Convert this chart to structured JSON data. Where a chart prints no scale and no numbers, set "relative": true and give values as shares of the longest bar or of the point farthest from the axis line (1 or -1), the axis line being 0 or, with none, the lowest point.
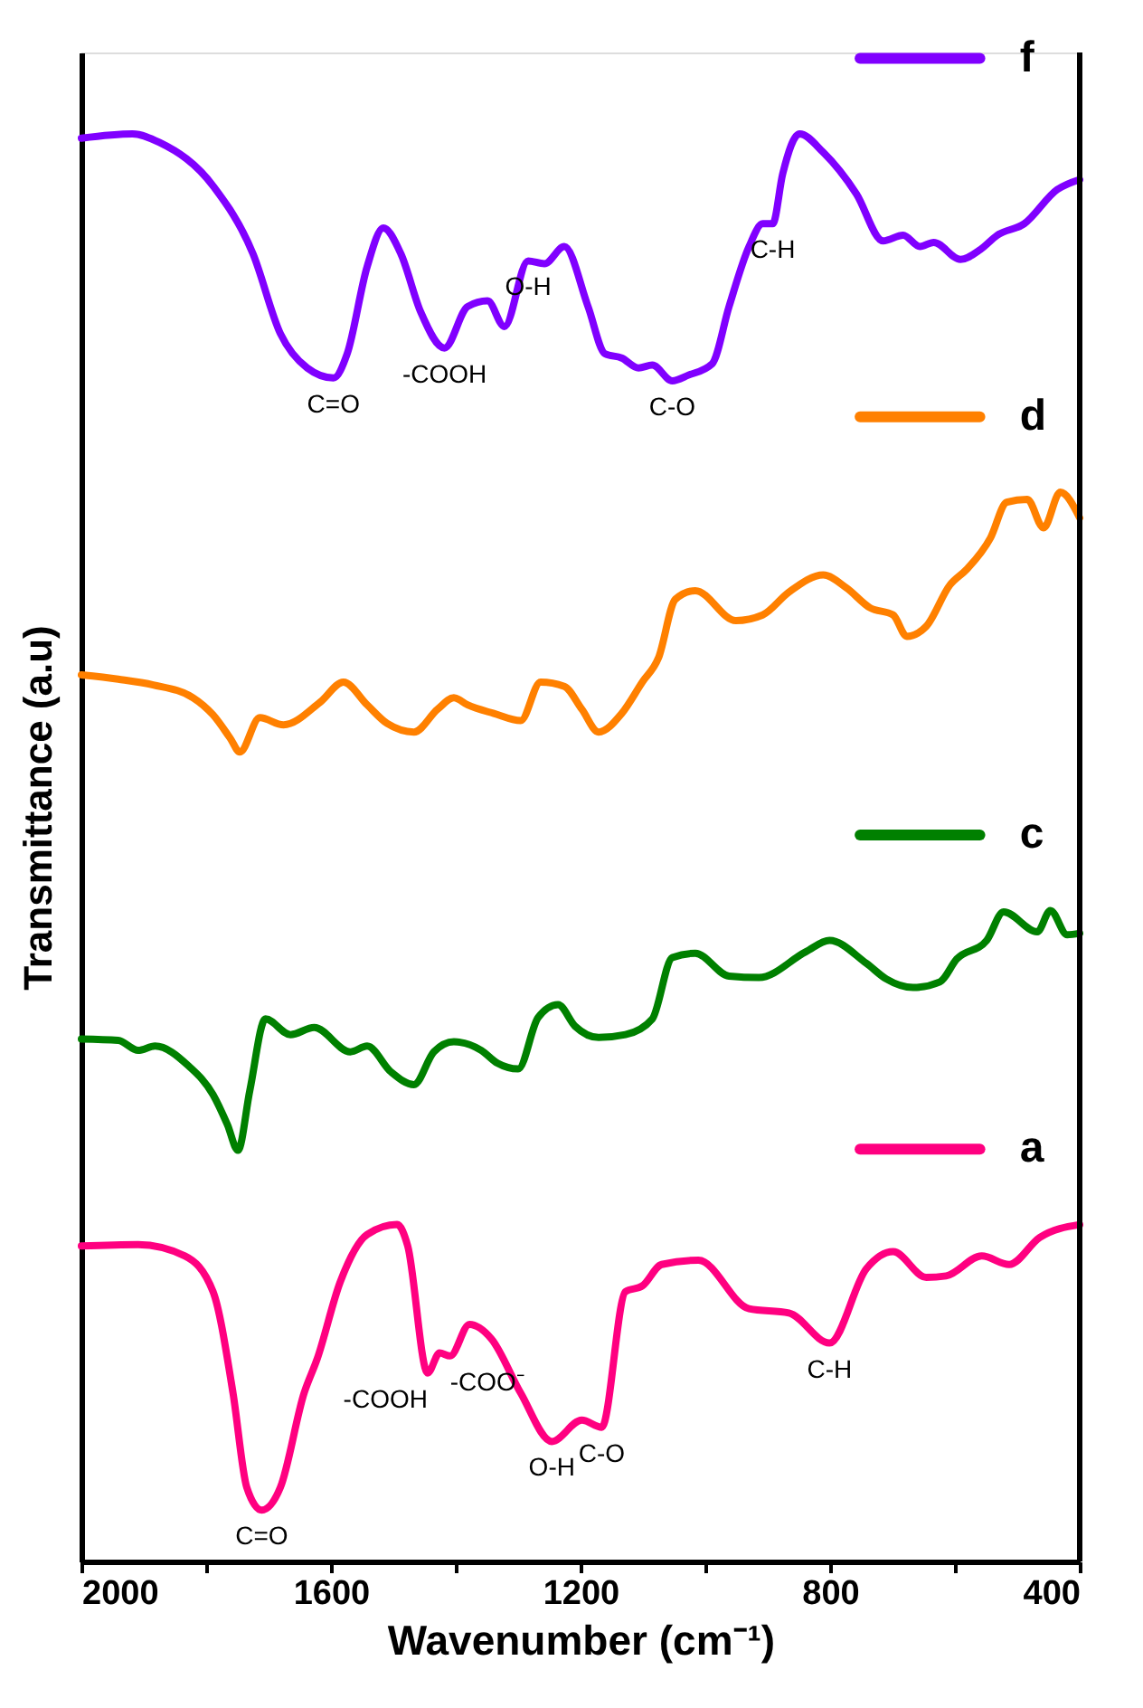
{
  "chart_data": {
    "type": "line",
    "relative": true,
    "xlabel": "Wavenumber (cm⁻¹)",
    "ylabel": "Transmittance (a.u)",
    "xlim": [
      2000,
      400
    ],
    "xticks": [
      2000,
      {
        "value": 1800,
        "label": null
      },
      1600,
      {
        "value": 1400,
        "label": null
      },
      1200,
      {
        "value": 1000,
        "label": null
      },
      800,
      {
        "value": 600,
        "label": null
      },
      400
    ],
    "legend": "right",
    "grid": false,
    "line_style": "solid",
    "series": [
      {
        "name": "f",
        "color": "#8000ff",
        "x": [
          2000,
          1918,
          1875,
          1788,
          1725,
          1681,
          1638,
          1596,
          1574,
          1542,
          1516,
          1488,
          1456,
          1418,
          1381,
          1349,
          1322,
          1284,
          1258,
          1226,
          1188,
          1161,
          1134,
          1107,
          1085,
          1053,
          1027,
          989,
          962,
          930,
          908,
          892,
          876,
          849,
          811,
          758,
          715,
          683,
          656,
          634,
          591,
          559,
          532,
          489,
          436,
          400
        ],
        "values": [
          0.997,
          1.0,
          0.994,
          0.963,
          0.916,
          0.86,
          0.836,
          0.829,
          0.846,
          0.907,
          0.934,
          0.916,
          0.875,
          0.85,
          0.879,
          0.883,
          0.865,
          0.911,
          0.909,
          0.921,
          0.879,
          0.846,
          0.843,
          0.836,
          0.838,
          0.827,
          0.831,
          0.839,
          0.879,
          0.921,
          0.937,
          0.937,
          0.972,
          1.0,
          0.987,
          0.958,
          0.925,
          0.929,
          0.921,
          0.924,
          0.912,
          0.919,
          0.929,
          0.937,
          0.961,
          0.968
        ]
      },
      {
        "name": "d",
        "color": "#ff8000",
        "x": [
          2000,
          1941,
          1885,
          1821,
          1789,
          1762,
          1746,
          1714,
          1676,
          1617,
          1580,
          1542,
          1510,
          1467,
          1429,
          1403,
          1381,
          1339,
          1296,
          1264,
          1226,
          1198,
          1171,
          1134,
          1101,
          1075,
          1048,
          1016,
          951,
          908,
          866,
          811,
          774,
          736,
          699,
          677,
          646,
          608,
          581,
          543,
          517,
          484,
          458,
          431,
          400
        ],
        "values": [
          0.621,
          0.618,
          0.614,
          0.605,
          0.593,
          0.577,
          0.567,
          0.591,
          0.586,
          0.602,
          0.616,
          0.6,
          0.587,
          0.581,
          0.597,
          0.605,
          0.6,
          0.594,
          0.589,
          0.616,
          0.613,
          0.597,
          0.581,
          0.594,
          0.616,
          0.633,
          0.674,
          0.68,
          0.659,
          0.663,
          0.679,
          0.691,
          0.682,
          0.668,
          0.663,
          0.648,
          0.655,
          0.684,
          0.695,
          0.717,
          0.742,
          0.744,
          0.724,
          0.749,
          0.731
        ]
      },
      {
        "name": "c",
        "color": "#008000",
        "x": [
          2000,
          1941,
          1909,
          1882,
          1828,
          1789,
          1766,
          1749,
          1730,
          1705,
          1665,
          1627,
          1569,
          1542,
          1504,
          1467,
          1435,
          1403,
          1359,
          1333,
          1300,
          1268,
          1236,
          1209,
          1171,
          1128,
          1085,
          1053,
          1016,
          962,
          914,
          839,
          801,
          742,
          710,
          667,
          624,
          597,
          549,
          522,
          468,
          447,
          420,
          400
        ],
        "values": [
          0.366,
          0.365,
          0.358,
          0.361,
          0.347,
          0.327,
          0.306,
          0.288,
          0.33,
          0.38,
          0.369,
          0.374,
          0.357,
          0.361,
          0.343,
          0.334,
          0.357,
          0.364,
          0.358,
          0.349,
          0.345,
          0.381,
          0.39,
          0.375,
          0.367,
          0.369,
          0.38,
          0.423,
          0.426,
          0.41,
          0.409,
          0.427,
          0.435,
          0.419,
          0.408,
          0.402,
          0.406,
          0.422,
          0.435,
          0.455,
          0.441,
          0.456,
          0.439,
          0.44
        ]
      },
      {
        "name": "a",
        "color": "#ff0080",
        "x": [
          2000,
          1909,
          1834,
          1789,
          1757,
          1735,
          1711,
          1681,
          1643,
          1622,
          1585,
          1542,
          1494,
          1477,
          1445,
          1426,
          1409,
          1378,
          1343,
          1296,
          1246,
          1198,
          1166,
          1128,
          1101,
          1070,
          1011,
          930,
          866,
          801,
          742,
          699,
          646,
          614,
          557,
          513,
          464,
          400
        ],
        "values": [
          0.221,
          0.222,
          0.214,
          0.189,
          0.118,
          0.052,
          0.036,
          0.052,
          0.118,
          0.142,
          0.196,
          0.229,
          0.236,
          0.221,
          0.132,
          0.146,
          0.144,
          0.166,
          0.156,
          0.118,
          0.084,
          0.099,
          0.094,
          0.189,
          0.193,
          0.208,
          0.211,
          0.177,
          0.174,
          0.153,
          0.205,
          0.217,
          0.199,
          0.2,
          0.214,
          0.208,
          0.227,
          0.236
        ]
      }
    ],
    "annotations": [
      {
        "text": "C=O",
        "x": 1596,
        "y": 0.829
      },
      {
        "text": "-COOH",
        "x": 1418,
        "y": 0.85
      },
      {
        "text": "O-H",
        "x": 1284,
        "y": 0.911
      },
      {
        "text": "C-O",
        "x": 1053,
        "y": 0.827
      },
      {
        "text": "C-H",
        "x": 892,
        "y": 0.937
      },
      {
        "text": "C=O",
        "x": 1711,
        "y": 0.036
      },
      {
        "text": "-COOH",
        "x": 1445,
        "y": 0.132
      },
      {
        "text": "-COO⁻",
        "x": 1409,
        "y": 0.144
      },
      {
        "text": "O-H",
        "x": 1246,
        "y": 0.084
      },
      {
        "text": "C-O",
        "x": 1166,
        "y": 0.094
      },
      {
        "text": "C-H",
        "x": 801,
        "y": 0.153
      }
    ]
  }
}
